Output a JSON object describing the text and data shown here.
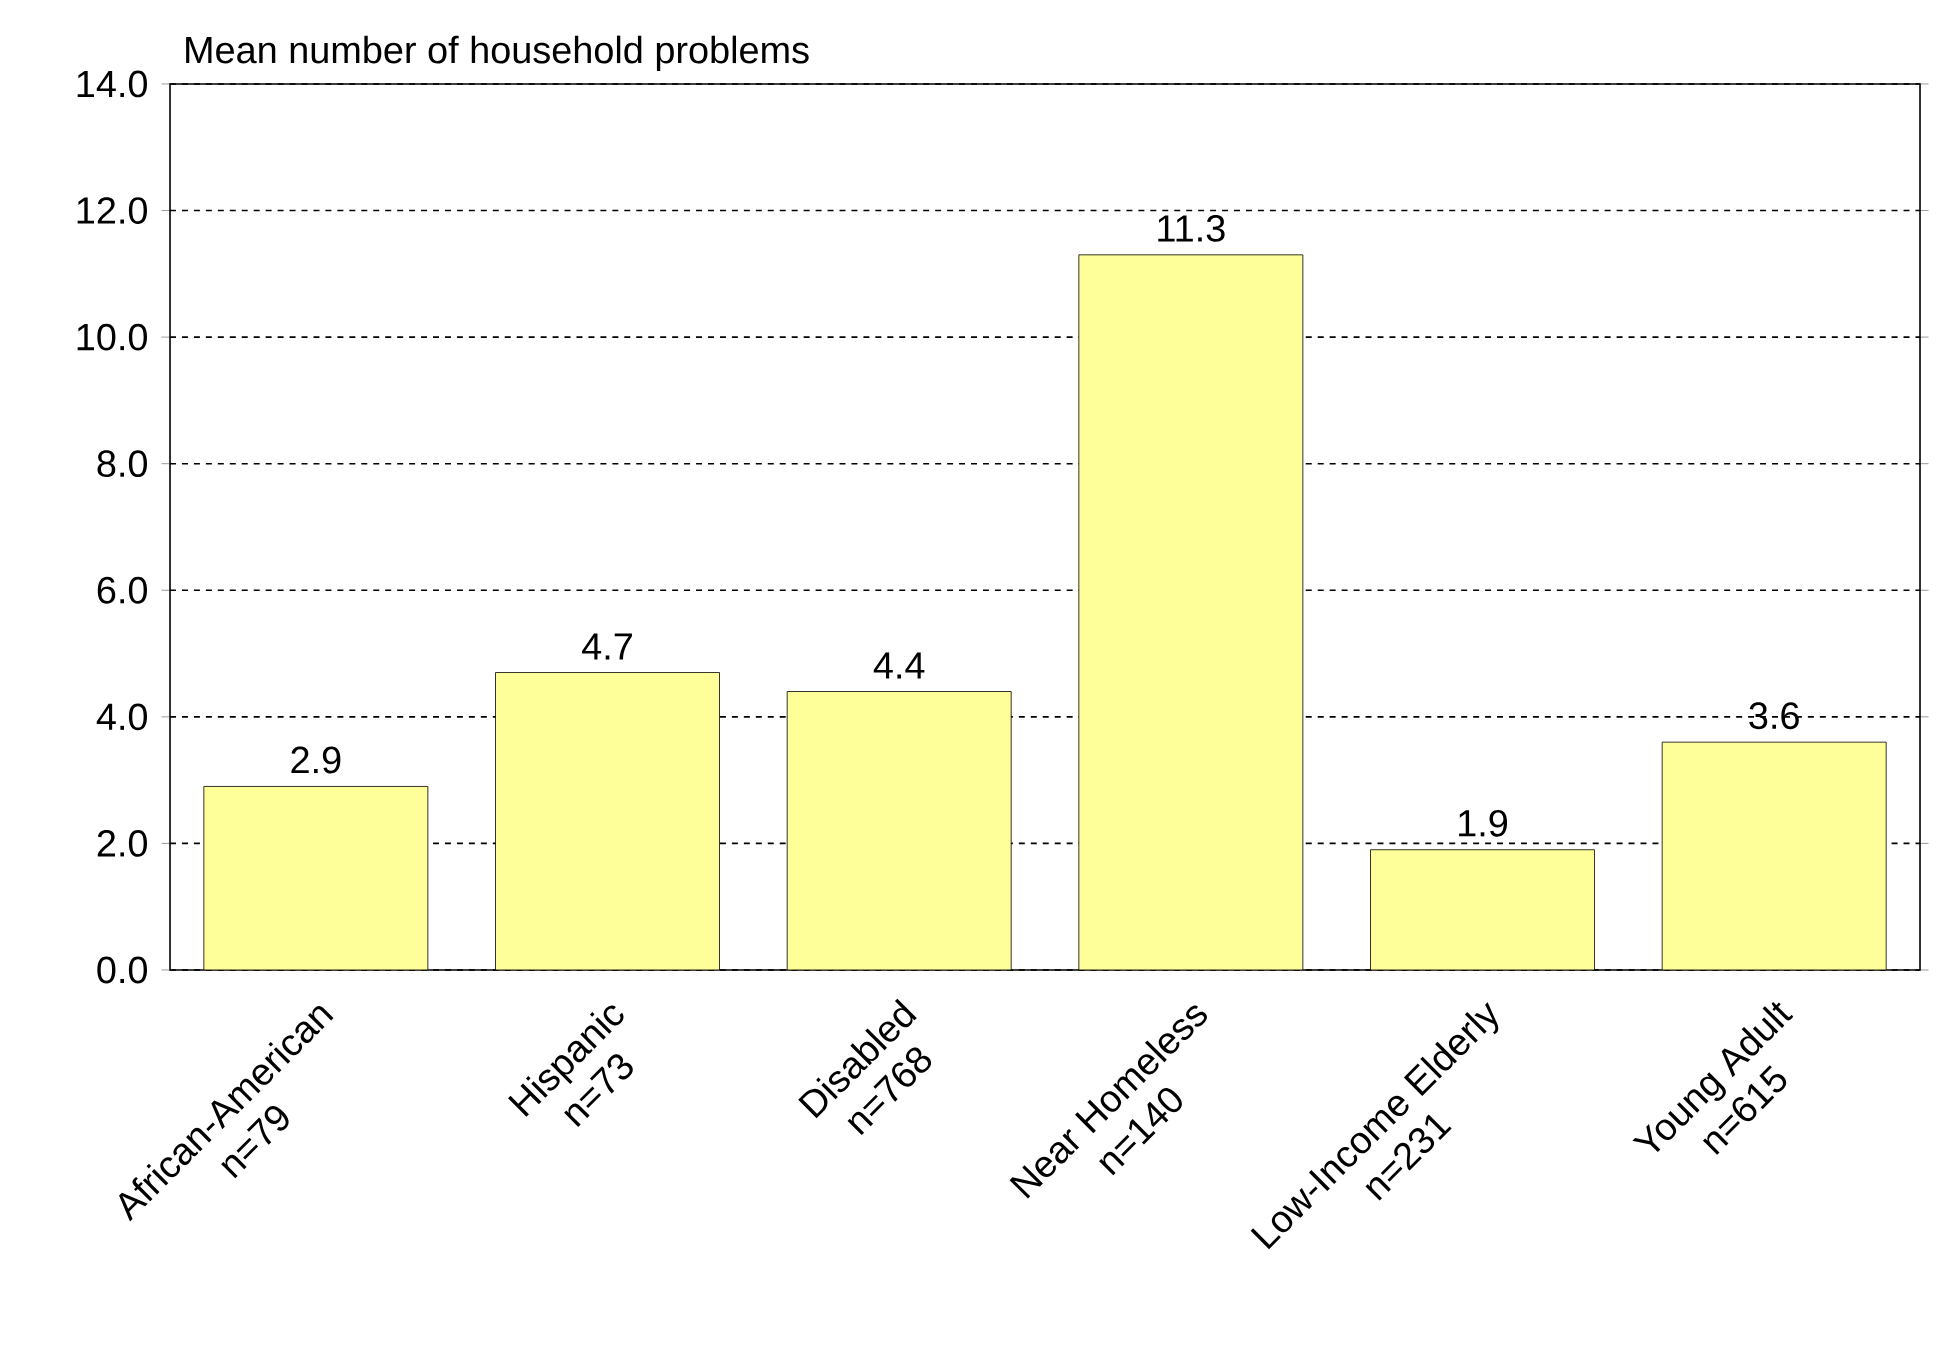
{
  "chart_data": {
    "type": "bar",
    "ylabel": "Mean number of household problems",
    "categories": [
      "African-American\nn=79",
      "Hispanic\nn=73",
      "Disabled\nn=768",
      "Near Homeless\nn=140",
      "Low-Income Elderly\nn=231",
      "Young Adult\nn=615"
    ],
    "values": [
      2.9,
      4.7,
      4.4,
      11.3,
      1.9,
      3.6
    ],
    "color": "#ffff99",
    "ylim": [
      0,
      14
    ],
    "yticks": [
      {
        "value": 0,
        "label": "0.0"
      },
      {
        "value": 2,
        "label": "2.0"
      },
      {
        "value": 4,
        "label": "4.0"
      },
      {
        "value": 6,
        "label": "6.0"
      },
      {
        "value": 8,
        "label": "8.0"
      },
      {
        "value": 10,
        "label": "10.0"
      },
      {
        "value": 12,
        "label": "12.0"
      },
      {
        "value": 14,
        "label": "14.0"
      }
    ],
    "grid": "y",
    "line_style": "dashed",
    "data_labels": true
  }
}
